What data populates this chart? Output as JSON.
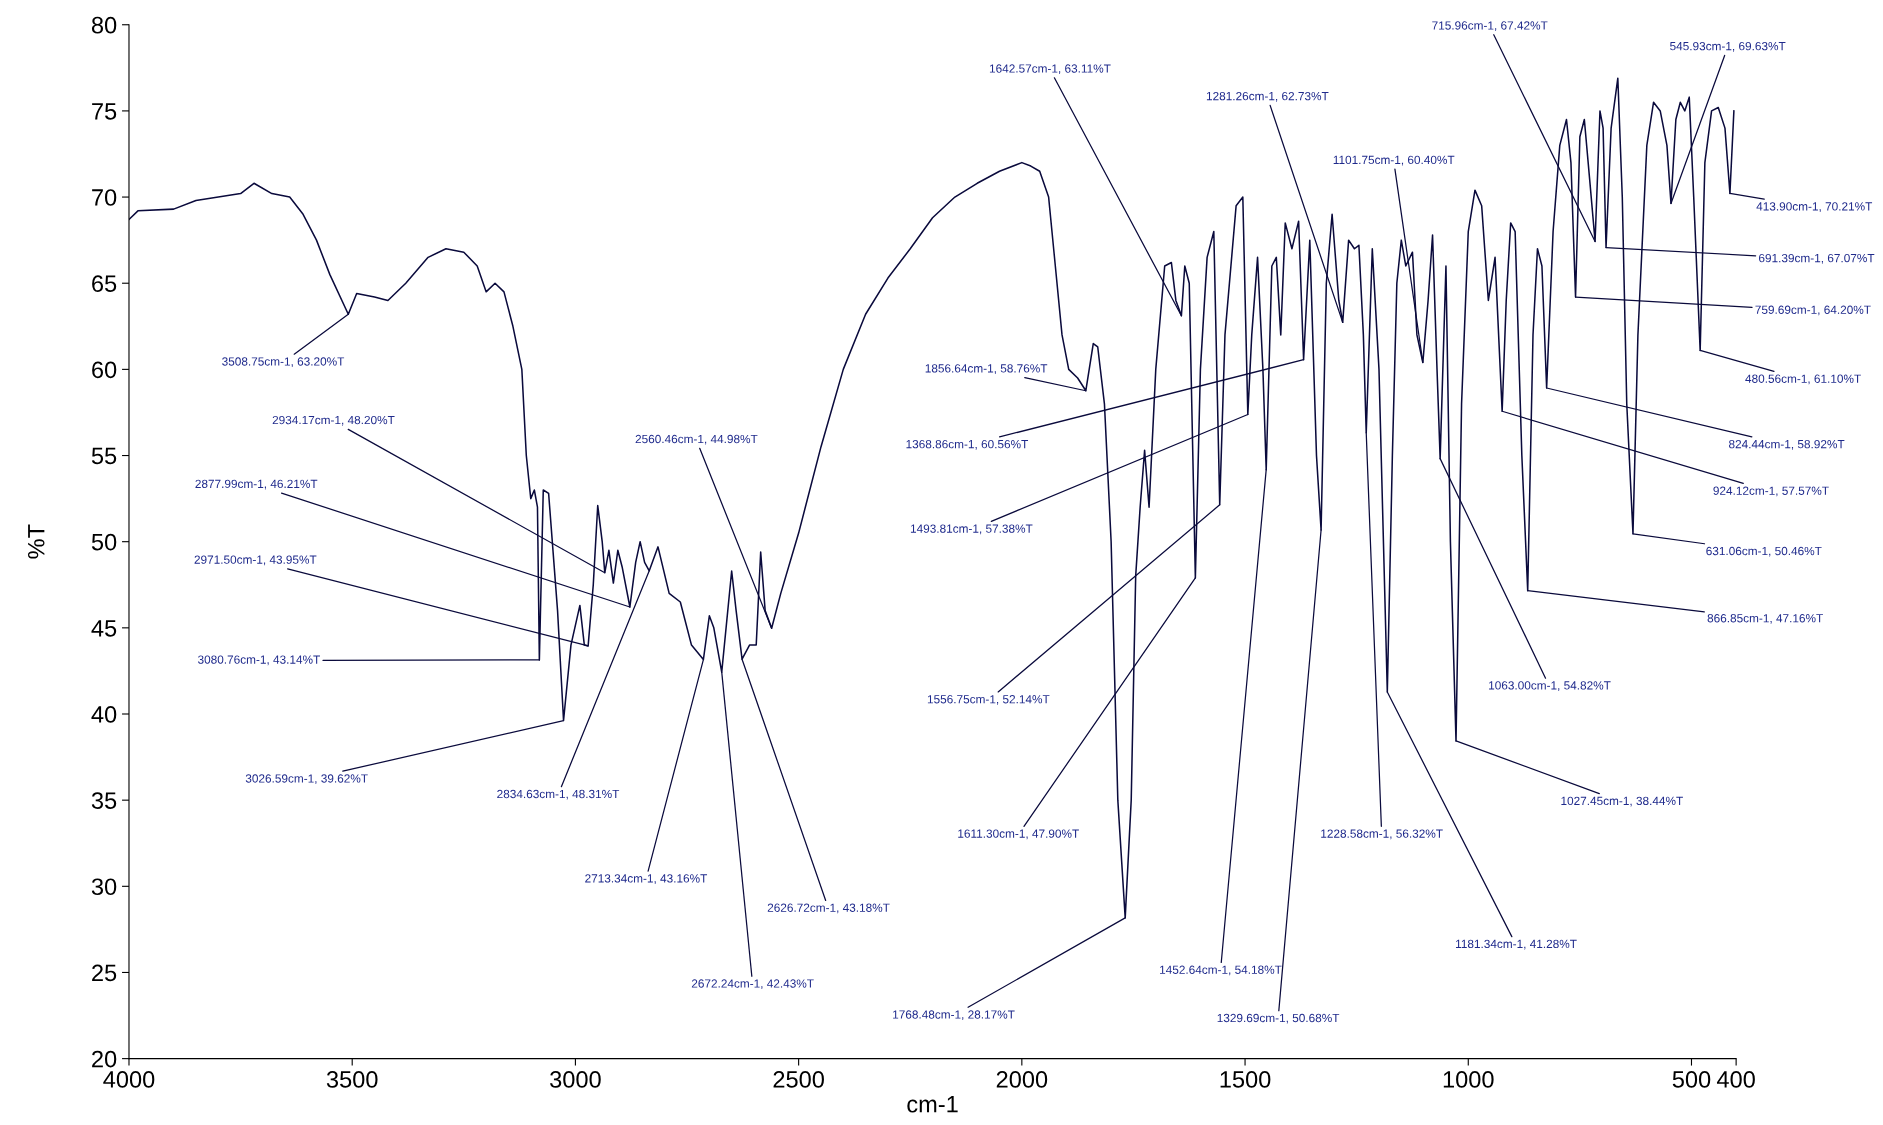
{
  "chart_data": {
    "type": "line",
    "xlabel": "cm-1",
    "ylabel": "%T",
    "xlim": [
      4000,
      400
    ],
    "xticks": [
      4000,
      3500,
      3000,
      2500,
      2000,
      1500,
      1000,
      500,
      400
    ],
    "ylim": [
      20,
      80
    ],
    "yticks": [
      20,
      25,
      30,
      35,
      40,
      45,
      50,
      55,
      60,
      65,
      70,
      75,
      80
    ],
    "grid": false,
    "legend": false,
    "marker": "none",
    "line_style": "solid",
    "series": [
      {
        "color": "#0a0a3c",
        "x": [
          4000,
          3980,
          3900,
          3850,
          3800,
          3750,
          3720,
          3680,
          3640,
          3610,
          3580,
          3550,
          3508.75,
          3490,
          3450,
          3420,
          3380,
          3330,
          3290,
          3250,
          3220,
          3200,
          3180,
          3160,
          3140,
          3120,
          3110,
          3100,
          3092,
          3085,
          3080.76,
          3072,
          3060,
          3040,
          3026.59,
          3010,
          2990,
          2980,
          2971.5,
          2960,
          2950,
          2940,
          2934.17,
          2925,
          2915,
          2905,
          2895,
          2877.99,
          2865,
          2855,
          2845,
          2834.63,
          2815,
          2790,
          2765,
          2740,
          2713.34,
          2700,
          2690,
          2672.24,
          2650,
          2640,
          2626.72,
          2610,
          2595,
          2585,
          2575,
          2560.46,
          2540,
          2500,
          2450,
          2400,
          2350,
          2300,
          2250,
          2200,
          2150,
          2100,
          2050,
          2000,
          1980,
          1960,
          1940,
          1925,
          1910,
          1895,
          1875,
          1856.64,
          1840,
          1830,
          1815,
          1800,
          1785,
          1768.48,
          1755,
          1745,
          1735,
          1725,
          1715,
          1700,
          1680,
          1665,
          1655,
          1642.57,
          1635,
          1625,
          1611.3,
          1600,
          1585,
          1570,
          1556.75,
          1545,
          1520,
          1505,
          1493.81,
          1485,
          1472,
          1460,
          1452.64,
          1440,
          1430,
          1420,
          1410,
          1395,
          1380,
          1368.86,
          1355,
          1340,
          1329.69,
          1318,
          1305,
          1290,
          1281.26,
          1268,
          1255,
          1245,
          1235,
          1228.58,
          1215,
          1200,
          1181.34,
          1170,
          1160,
          1150,
          1140,
          1125,
          1115,
          1101.75,
          1090,
          1080,
          1070,
          1063,
          1050,
          1040,
          1027.45,
          1015,
          1000,
          985,
          970,
          955,
          940,
          924.12,
          915,
          905,
          895,
          880,
          866.85,
          855,
          845,
          835,
          824.44,
          810,
          795,
          780,
          770,
          759.69,
          750,
          740,
          728,
          715.96,
          705,
          698,
          691.39,
          680,
          665,
          655,
          645,
          631.06,
          620,
          600,
          585,
          570,
          555,
          545.93,
          535,
          525,
          515,
          505,
          495,
          480.56,
          470,
          455,
          440,
          425,
          413.9,
          405
        ],
        "values": [
          68.7,
          69.2,
          69.3,
          69.8,
          70.0,
          70.2,
          70.8,
          70.2,
          70.0,
          69.0,
          67.5,
          65.5,
          63.2,
          64.4,
          64.2,
          64.0,
          65.0,
          66.5,
          67.0,
          66.8,
          66.0,
          64.5,
          65.0,
          64.5,
          62.5,
          60.0,
          55.0,
          52.5,
          53.0,
          52.0,
          43.14,
          53.0,
          52.8,
          46.0,
          39.62,
          44.0,
          46.3,
          44.0,
          43.95,
          47.5,
          52.1,
          50.0,
          48.2,
          49.5,
          47.6,
          49.5,
          48.5,
          46.21,
          48.8,
          50.0,
          48.8,
          48.31,
          49.7,
          47.0,
          46.5,
          44.0,
          43.16,
          45.7,
          45.0,
          42.43,
          48.3,
          46.0,
          43.18,
          44.0,
          44.0,
          49.4,
          46.0,
          44.98,
          47.0,
          50.5,
          55.5,
          60.0,
          63.2,
          65.3,
          67.0,
          68.8,
          70.0,
          70.8,
          71.5,
          72.0,
          71.8,
          71.5,
          70.0,
          66.0,
          62.0,
          60.0,
          59.5,
          58.76,
          61.5,
          61.3,
          58.0,
          50.0,
          35.0,
          28.17,
          35.0,
          48.0,
          52.0,
          55.3,
          52.0,
          60.0,
          66.0,
          66.2,
          64.0,
          63.11,
          66.0,
          65.0,
          47.9,
          60.0,
          66.5,
          68.0,
          52.14,
          62.0,
          69.5,
          70.0,
          57.38,
          62.0,
          66.5,
          60.0,
          54.18,
          66.0,
          66.5,
          62.0,
          68.5,
          67.0,
          68.6,
          60.56,
          67.5,
          55.0,
          50.68,
          65.0,
          69.0,
          64.0,
          62.73,
          67.5,
          67.0,
          67.2,
          62.0,
          56.32,
          67.0,
          60.0,
          41.28,
          55.0,
          65.0,
          67.5,
          66.0,
          66.8,
          62.0,
          60.4,
          64.0,
          67.8,
          60.0,
          54.82,
          66.0,
          50.0,
          38.44,
          58.0,
          68.0,
          70.4,
          69.5,
          64.0,
          66.5,
          57.57,
          64.0,
          68.5,
          68.0,
          55.0,
          47.16,
          62.0,
          67.0,
          66.0,
          58.92,
          68.0,
          73.0,
          74.5,
          72.0,
          64.2,
          73.5,
          74.5,
          71.0,
          67.42,
          75.0,
          74.0,
          67.07,
          74.0,
          76.9,
          70.0,
          58.0,
          50.46,
          62.0,
          73.0,
          75.5,
          75.0,
          73.0,
          69.63,
          74.5,
          75.5,
          75.0,
          75.8,
          70.0,
          61.1,
          72.0,
          75.0,
          75.2,
          74.0,
          70.21,
          75.0
        ]
      }
    ],
    "annotations": [
      {
        "text": "3508.75cm-1, 63.20%T",
        "x": 3508.75,
        "y": 63.2
      },
      {
        "text": "2934.17cm-1, 48.20%T",
        "x": 2934.17,
        "y": 48.2
      },
      {
        "text": "2877.99cm-1, 46.21%T",
        "x": 2877.99,
        "y": 46.21
      },
      {
        "text": "2971.50cm-1, 43.95%T",
        "x": 2971.5,
        "y": 43.95
      },
      {
        "text": "3080.76cm-1, 43.14%T",
        "x": 3080.76,
        "y": 43.14
      },
      {
        "text": "3026.59cm-1, 39.62%T",
        "x": 3026.59,
        "y": 39.62
      },
      {
        "text": "2834.63cm-1, 48.31%T",
        "x": 2834.63,
        "y": 48.31
      },
      {
        "text": "2713.34cm-1, 43.16%T",
        "x": 2713.34,
        "y": 43.16
      },
      {
        "text": "2626.72cm-1, 43.18%T",
        "x": 2626.72,
        "y": 43.18
      },
      {
        "text": "2672.24cm-1, 42.43%T",
        "x": 2672.24,
        "y": 42.43
      },
      {
        "text": "2560.46cm-1, 44.98%T",
        "x": 2560.46,
        "y": 44.98
      },
      {
        "text": "1642.57cm-1, 63.11%T",
        "x": 1642.57,
        "y": 63.11
      },
      {
        "text": "1856.64cm-1, 58.76%T",
        "x": 1856.64,
        "y": 58.76
      },
      {
        "text": "1368.86cm-1, 60.56%T",
        "x": 1368.86,
        "y": 60.56
      },
      {
        "text": "1493.81cm-1, 57.38%T",
        "x": 1493.81,
        "y": 57.38
      },
      {
        "text": "1556.75cm-1, 52.14%T",
        "x": 1556.75,
        "y": 52.14
      },
      {
        "text": "1611.30cm-1, 47.90%T",
        "x": 1611.3,
        "y": 47.9
      },
      {
        "text": "1768.48cm-1, 28.17%T",
        "x": 1768.48,
        "y": 28.17
      },
      {
        "text": "1452.64cm-1, 54.18%T",
        "x": 1452.64,
        "y": 54.18
      },
      {
        "text": "1329.69cm-1, 50.68%T",
        "x": 1329.69,
        "y": 50.68
      },
      {
        "text": "1228.58cm-1, 56.32%T",
        "x": 1228.58,
        "y": 56.32
      },
      {
        "text": "1281.26cm-1, 62.73%T",
        "x": 1281.26,
        "y": 62.73
      },
      {
        "text": "1101.75cm-1, 60.40%T",
        "x": 1101.75,
        "y": 60.4
      },
      {
        "text": "1181.34cm-1, 41.28%T",
        "x": 1181.34,
        "y": 41.28
      },
      {
        "text": "1027.45cm-1, 38.44%T",
        "x": 1027.45,
        "y": 38.44
      },
      {
        "text": "1063.00cm-1, 54.82%T",
        "x": 1063.0,
        "y": 54.82
      },
      {
        "text": "866.85cm-1, 47.16%T",
        "x": 866.85,
        "y": 47.16
      },
      {
        "text": "631.06cm-1, 50.46%T",
        "x": 631.06,
        "y": 50.46
      },
      {
        "text": "924.12cm-1, 57.57%T",
        "x": 924.12,
        "y": 57.57
      },
      {
        "text": "824.44cm-1, 58.92%T",
        "x": 824.44,
        "y": 58.92
      },
      {
        "text": "480.56cm-1, 61.10%T",
        "x": 480.56,
        "y": 61.1
      },
      {
        "text": "759.69cm-1, 64.20%T",
        "x": 759.69,
        "y": 64.2
      },
      {
        "text": "691.39cm-1, 67.07%T",
        "x": 691.39,
        "y": 67.07
      },
      {
        "text": "413.90cm-1, 70.21%T",
        "x": 413.9,
        "y": 70.21
      },
      {
        "text": "715.96cm-1, 67.42%T",
        "x": 715.96,
        "y": 67.42
      },
      {
        "text": "545.93cm-1, 69.63%T",
        "x": 545.93,
        "y": 69.63
      }
    ]
  }
}
